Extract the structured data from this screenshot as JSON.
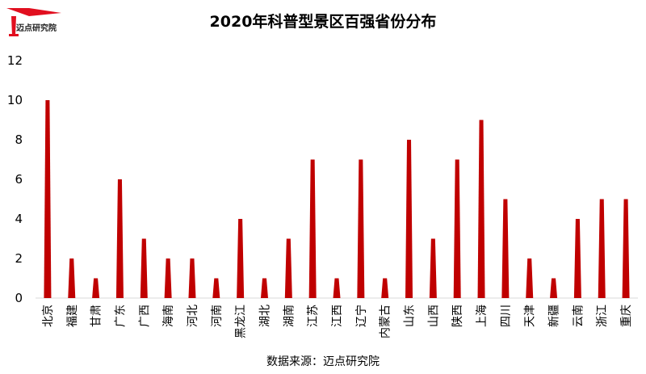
{
  "logo": {
    "text": "迈点研究院",
    "accent_color": "#e10f1f"
  },
  "source": "数据来源：迈点研究院",
  "chart_data": {
    "type": "area",
    "title": "2020年科普型景区百强省份分布",
    "xlabel": "",
    "ylabel": "",
    "ylim": [
      0,
      12
    ],
    "yticks": [
      0,
      2,
      4,
      6,
      8,
      10,
      12
    ],
    "grid": false,
    "legend": "none",
    "color": "#c00000",
    "categories": [
      "北京",
      "福建",
      "甘肃",
      "广东",
      "广西",
      "海南",
      "河北",
      "河南",
      "黑龙江",
      "湖北",
      "湖南",
      "江苏",
      "江西",
      "辽宁",
      "内蒙古",
      "山东",
      "山西",
      "陕西",
      "上海",
      "四川",
      "天津",
      "新疆",
      "云南",
      "浙江",
      "重庆"
    ],
    "values": [
      10,
      2,
      1,
      6,
      3,
      2,
      2,
      1,
      4,
      1,
      3,
      7,
      1,
      7,
      1,
      8,
      3,
      7,
      9,
      5,
      2,
      1,
      4,
      5,
      5
    ]
  }
}
